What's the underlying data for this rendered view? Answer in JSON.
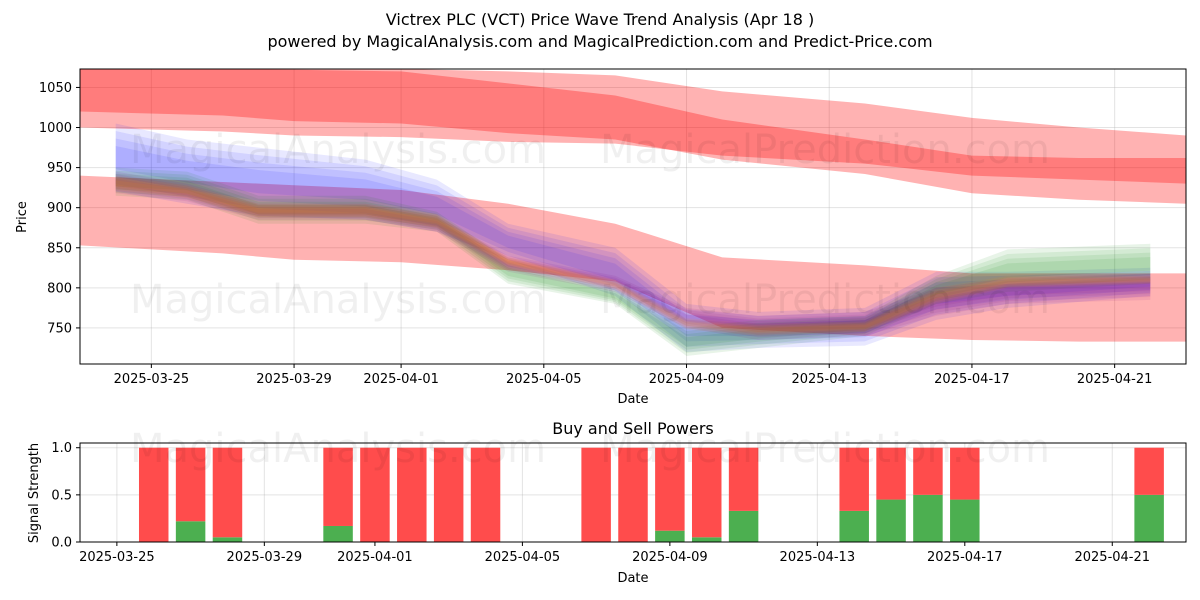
{
  "header": {
    "title": "Victrex PLC (VCT) Price Wave Trend Analysis (Apr 18 )",
    "subtitle": "powered by MagicalAnalysis.com and MagicalPrediction.com and Predict-Price.com"
  },
  "watermarks": {
    "top_left": "MagicalAnalysis.com",
    "top_right": "MagicalPrediction.com",
    "mid_left": "MagicalAnalysis.com",
    "mid_right": "MagicalPrediction.com",
    "bottom_left": "MagicalAnalysis.com",
    "bottom_right": "MagicalPrediction.com"
  },
  "colors": {
    "red_band": "#ff0000",
    "blue_wave": "#0000ff",
    "green_wave": "#008000",
    "purple_wave": "#800080",
    "orange_wave": "#ff8c00",
    "buy": "#4caf50",
    "sell": "#ff4c4c"
  },
  "chart_data": [
    {
      "type": "area",
      "title": "",
      "xlabel": "Date",
      "ylabel": "Price",
      "x_ticks": [
        "2025-03-25",
        "2025-03-29",
        "2025-04-01",
        "2025-04-05",
        "2025-04-09",
        "2025-04-13",
        "2025-04-17",
        "2025-04-21"
      ],
      "y_ticks": [
        750,
        800,
        850,
        900,
        950,
        1000,
        1050
      ],
      "ylim": [
        705,
        1073
      ],
      "xlim": [
        "2025-03-23",
        "2025-04-23"
      ],
      "grid": true,
      "bands": [
        {
          "name": "upper_outer",
          "color": "#ff0000",
          "x": [
            "2025-03-23",
            "2025-03-27",
            "2025-03-29",
            "2025-04-01",
            "2025-04-04",
            "2025-04-07",
            "2025-04-10",
            "2025-04-14",
            "2025-04-17",
            "2025-04-20",
            "2025-04-23"
          ],
          "low": [
            1000,
            995,
            990,
            988,
            982,
            980,
            965,
            955,
            940,
            935,
            930
          ],
          "high": [
            1078,
            1078,
            1078,
            1076,
            1070,
            1065,
            1045,
            1030,
            1012,
            1000,
            990
          ]
        },
        {
          "name": "upper_core",
          "color": "#ff0000",
          "x": [
            "2025-03-23",
            "2025-03-27",
            "2025-03-29",
            "2025-04-01",
            "2025-04-04",
            "2025-04-07",
            "2025-04-10",
            "2025-04-14",
            "2025-04-17",
            "2025-04-20",
            "2025-04-23"
          ],
          "low": [
            1020,
            1015,
            1008,
            1005,
            993,
            985,
            960,
            942,
            918,
            910,
            905
          ],
          "high": [
            1076,
            1074,
            1072,
            1070,
            1055,
            1040,
            1010,
            985,
            965,
            962,
            962
          ]
        },
        {
          "name": "lower_outer",
          "color": "#ff0000",
          "x": [
            "2025-03-23",
            "2025-03-27",
            "2025-03-29",
            "2025-04-01",
            "2025-04-04",
            "2025-04-07",
            "2025-04-10",
            "2025-04-14",
            "2025-04-17",
            "2025-04-20",
            "2025-04-23"
          ],
          "low": [
            853,
            843,
            835,
            832,
            822,
            808,
            750,
            740,
            735,
            733,
            733
          ],
          "high": [
            940,
            932,
            928,
            922,
            905,
            880,
            838,
            828,
            818,
            818,
            818
          ]
        }
      ],
      "series": [
        {
          "color": "#0000ff",
          "x": [
            "2025-03-24",
            "2025-03-26",
            "2025-03-28",
            "2025-03-31",
            "2025-04-02",
            "2025-04-04",
            "2025-04-07",
            "2025-04-09",
            "2025-04-11",
            "2025-04-14",
            "2025-04-16",
            "2025-04-18",
            "2025-04-22"
          ],
          "low": [
            920,
            905,
            890,
            885,
            870,
            835,
            790,
            720,
            725,
            728,
            760,
            775,
            790
          ],
          "high": [
            1005,
            985,
            975,
            960,
            935,
            880,
            850,
            780,
            770,
            775,
            820,
            820,
            825
          ]
        },
        {
          "color": "#008000",
          "x": [
            "2025-03-24",
            "2025-03-26",
            "2025-03-28",
            "2025-03-31",
            "2025-04-02",
            "2025-04-04",
            "2025-04-07",
            "2025-04-09",
            "2025-04-11",
            "2025-04-14",
            "2025-04-16",
            "2025-04-18",
            "2025-04-22"
          ],
          "low": [
            915,
            910,
            880,
            880,
            870,
            805,
            780,
            715,
            725,
            740,
            780,
            795,
            805
          ],
          "high": [
            950,
            945,
            915,
            915,
            895,
            835,
            800,
            750,
            760,
            765,
            815,
            848,
            855
          ]
        },
        {
          "color": "#800080",
          "x": [
            "2025-03-24",
            "2025-03-26",
            "2025-03-28",
            "2025-03-31",
            "2025-04-02",
            "2025-04-04",
            "2025-04-07",
            "2025-04-09",
            "2025-04-11",
            "2025-04-14",
            "2025-04-16",
            "2025-04-18",
            "2025-04-22"
          ],
          "low": [
            918,
            908,
            885,
            885,
            870,
            820,
            795,
            750,
            735,
            740,
            765,
            780,
            785
          ],
          "high": [
            945,
            930,
            905,
            905,
            890,
            840,
            815,
            775,
            765,
            770,
            800,
            812,
            818
          ]
        },
        {
          "color": "#ff8c00",
          "x": [
            "2025-03-24",
            "2025-03-26",
            "2025-03-28",
            "2025-03-31",
            "2025-04-02",
            "2025-04-04",
            "2025-04-07",
            "2025-04-09",
            "2025-04-11",
            "2025-04-14",
            "2025-04-16",
            "2025-04-18",
            "2025-04-22"
          ],
          "low": [
            922,
            912,
            888,
            888,
            875,
            828,
            798,
            748,
            740,
            745,
            780,
            800,
            805
          ],
          "high": [
            940,
            928,
            905,
            905,
            892,
            838,
            810,
            762,
            755,
            758,
            800,
            815,
            815
          ]
        }
      ]
    },
    {
      "type": "bar",
      "title": "Buy and Sell Powers",
      "xlabel": "Date",
      "ylabel": "Signal Strength",
      "x_ticks": [
        "2025-03-25",
        "2025-03-29",
        "2025-04-01",
        "2025-04-05",
        "2025-04-09",
        "2025-04-13",
        "2025-04-17",
        "2025-04-21"
      ],
      "y_ticks": [
        "0.0",
        "0.5",
        "1.0"
      ],
      "ylim": [
        0,
        1.05
      ],
      "xlim": [
        "2025-03-24",
        "2025-04-23"
      ],
      "categories": [
        "2025-03-26",
        "2025-03-27",
        "2025-03-28",
        "2025-03-31",
        "2025-04-01",
        "2025-04-02",
        "2025-04-03",
        "2025-04-04",
        "2025-04-07",
        "2025-04-08",
        "2025-04-09",
        "2025-04-10",
        "2025-04-11",
        "2025-04-14",
        "2025-04-15",
        "2025-04-16",
        "2025-04-17",
        "2025-04-22"
      ],
      "series": [
        {
          "name": "Buy",
          "color": "#4caf50",
          "values": [
            0.0,
            0.22,
            0.05,
            0.17,
            0.0,
            0.0,
            0.0,
            0.0,
            0.0,
            0.0,
            0.12,
            0.05,
            0.33,
            0.33,
            0.45,
            0.5,
            0.45,
            0.5
          ]
        },
        {
          "name": "Sell",
          "color": "#ff4c4c",
          "values": [
            1.0,
            0.78,
            0.95,
            0.83,
            1.0,
            1.0,
            1.0,
            1.0,
            1.0,
            1.0,
            0.88,
            0.95,
            0.67,
            0.67,
            0.55,
            0.5,
            0.55,
            0.5
          ]
        }
      ]
    }
  ]
}
